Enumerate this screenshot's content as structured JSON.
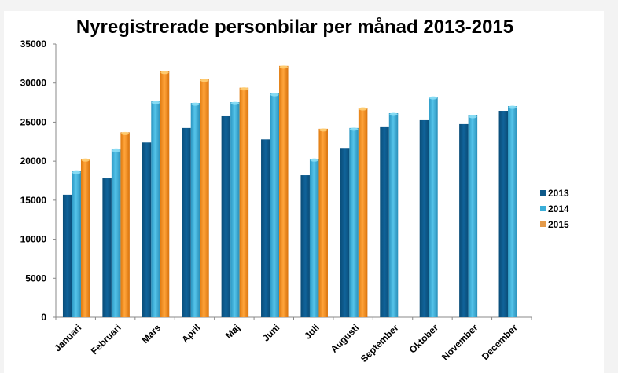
{
  "chart_data": {
    "type": "bar",
    "title": "Nyregistrerade personbilar per månad 2013-2015",
    "xlabel": "",
    "ylabel": "",
    "ylim": [
      0,
      35000
    ],
    "yticks": [
      0,
      5000,
      10000,
      15000,
      20000,
      25000,
      30000,
      35000
    ],
    "ytick_labels": [
      "0",
      "5000",
      "10000",
      "15000",
      "20000",
      "25000",
      "30000",
      "35000"
    ],
    "grid": false,
    "legend_position": "right",
    "categories": [
      "Januari",
      "Februari",
      "Mars",
      "April",
      "Maj",
      "Juni",
      "Juli",
      "Augusti",
      "September",
      "Oktober",
      "November",
      "December"
    ],
    "series": [
      {
        "name": "2013",
        "color": "#0e5a8a",
        "values": [
          15700,
          17800,
          22400,
          24250,
          25750,
          22800,
          18200,
          21600,
          24350,
          25250,
          24750,
          26450
        ]
      },
      {
        "name": "2014",
        "color": "#3aaed8",
        "values": [
          18700,
          21500,
          27650,
          27450,
          27550,
          28650,
          20300,
          24250,
          26150,
          28250,
          25850,
          27050
        ]
      },
      {
        "name": "2015",
        "color": "#f39020",
        "values": [
          20300,
          23700,
          31500,
          30500,
          29400,
          32200,
          24150,
          26850,
          null,
          null,
          null,
          null
        ]
      }
    ]
  }
}
